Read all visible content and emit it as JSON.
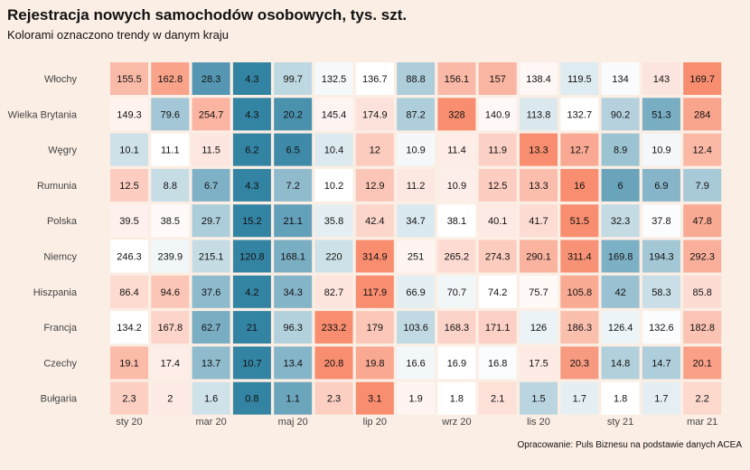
{
  "title": "Rejestracja nowych samochodów osobowych, tys. szt.",
  "subtitle": "Kolorami oznaczono trendy w danym kraju",
  "caption": "Opracowanie: Puls Biznesu na podstawie danych ACEA",
  "colors": {
    "background": "#fbeee4",
    "low": "#0f6d93",
    "mid": "#ffffff",
    "high": "#f5673f"
  },
  "chart_data": {
    "type": "heatmap",
    "title": "Rejestracja nowych samochodów osobowych, tys. szt.",
    "subtitle": "Kolorami oznaczono trendy w danym kraju",
    "rows": [
      "Włochy",
      "Wielka Brytania",
      "Węgry",
      "Rumunia",
      "Polska",
      "Niemcy",
      "Hiszpania",
      "Francja",
      "Czechy",
      "Bułgaria"
    ],
    "x_tick_labels": [
      "sty 20",
      "",
      "mar 20",
      "",
      "maj 20",
      "",
      "lip 20",
      "",
      "wrz 20",
      "",
      "lis 20",
      "",
      "sty 21",
      "",
      "mar 21"
    ],
    "values": [
      [
        155.5,
        162.8,
        28.3,
        4.3,
        99.7,
        132.5,
        136.7,
        88.8,
        156.1,
        157,
        138.4,
        119.5,
        134,
        143,
        169.7
      ],
      [
        149.3,
        79.6,
        254.7,
        4.3,
        20.2,
        145.4,
        174.9,
        87.2,
        328,
        140.9,
        113.8,
        132.7,
        90.2,
        51.3,
        284
      ],
      [
        10.1,
        11.1,
        11.5,
        6.2,
        6.5,
        10.4,
        12,
        10.9,
        11.4,
        11.9,
        13.3,
        12.7,
        8.9,
        10.9,
        12.4
      ],
      [
        12.5,
        8.8,
        6.7,
        4.3,
        7.2,
        10.2,
        12.9,
        11.2,
        10.9,
        12.5,
        13.3,
        16,
        6,
        6.9,
        7.9
      ],
      [
        39.5,
        38.5,
        29.7,
        15.2,
        21.1,
        35.8,
        42.4,
        34.7,
        38.1,
        40.1,
        41.7,
        51.5,
        32.3,
        37.8,
        47.8
      ],
      [
        246.3,
        239.9,
        215.1,
        120.8,
        168.1,
        220,
        314.9,
        251,
        265.2,
        274.3,
        290.1,
        311.4,
        169.8,
        194.3,
        292.3
      ],
      [
        86.4,
        94.6,
        37.6,
        4.2,
        34.3,
        82.7,
        117.9,
        66.9,
        70.7,
        74.2,
        75.7,
        105.8,
        42,
        58.3,
        85.8
      ],
      [
        134.2,
        167.8,
        62.7,
        21,
        96.3,
        233.2,
        179,
        103.6,
        168.3,
        171.1,
        126,
        186.3,
        126.4,
        132.6,
        182.8
      ],
      [
        19.1,
        17.4,
        13.7,
        10.7,
        13.4,
        20.8,
        19.8,
        16.6,
        16.9,
        16.8,
        17.5,
        20.3,
        14.8,
        14.7,
        20.1
      ],
      [
        2.3,
        2,
        1.6,
        0.8,
        1.1,
        2.3,
        3.1,
        1.9,
        1.8,
        2.1,
        1.5,
        1.7,
        1.8,
        1.7,
        2.2
      ]
    ],
    "display_values": [
      [
        "155.5",
        "162.8",
        "28.3",
        "4.3",
        "99.7",
        "132.5",
        "136.7",
        "88.8",
        "156.1",
        "157",
        "138.4",
        "119.5",
        "134",
        "143",
        "169.7"
      ],
      [
        "149.3",
        "79.6",
        "254.7",
        "4.3",
        "20.2",
        "145.4",
        "174.9",
        "87.2",
        "328",
        "140.9",
        "113.8",
        "132.7",
        "90.2",
        "51.3",
        "284"
      ],
      [
        "10.1",
        "11.1",
        "11.5",
        "6.2",
        "6.5",
        "10.4",
        "12",
        "10.9",
        "11.4",
        "11.9",
        "13.3",
        "12.7",
        "8.9",
        "10.9",
        "12.4"
      ],
      [
        "12.5",
        "8.8",
        "6.7",
        "4.3",
        "7.2",
        "10.2",
        "12.9",
        "11.2",
        "10.9",
        "12.5",
        "13.3",
        "16",
        "6",
        "6.9",
        "7.9"
      ],
      [
        "39.5",
        "38.5",
        "29.7",
        "15.2",
        "21.1",
        "35.8",
        "42.4",
        "34.7",
        "38.1",
        "40.1",
        "41.7",
        "51.5",
        "32.3",
        "37.8",
        "47.8"
      ],
      [
        "246.3",
        "239.9",
        "215.1",
        "120.8",
        "168.1",
        "220",
        "314.9",
        "251",
        "265.2",
        "274.3",
        "290.1",
        "311.4",
        "169.8",
        "194.3",
        "292.3"
      ],
      [
        "86.4",
        "94.6",
        "37.6",
        "4.2",
        "34.3",
        "82.7",
        "117.9",
        "66.9",
        "70.7",
        "74.2",
        "75.7",
        "105.8",
        "42",
        "58.3",
        "85.8"
      ],
      [
        "134.2",
        "167.8",
        "62.7",
        "21",
        "96.3",
        "233.2",
        "179",
        "103.6",
        "168.3",
        "171.1",
        "126",
        "186.3",
        "126.4",
        "132.6",
        "182.8"
      ],
      [
        "19.1",
        "17.4",
        "13.7",
        "10.7",
        "13.4",
        "20.8",
        "19.8",
        "16.6",
        "16.9",
        "16.8",
        "17.5",
        "20.3",
        "14.8",
        "14.7",
        "20.1"
      ],
      [
        "2.3",
        "2",
        "1.6",
        "0.8",
        "1.1",
        "2.3",
        "3.1",
        "1.9",
        "1.8",
        "2.1",
        "1.5",
        "1.7",
        "1.8",
        "1.7",
        "2.2"
      ]
    ],
    "color_scale": "per-row diverging (blue = low, white = mid, red = high)",
    "grid": false,
    "legend": "none"
  }
}
